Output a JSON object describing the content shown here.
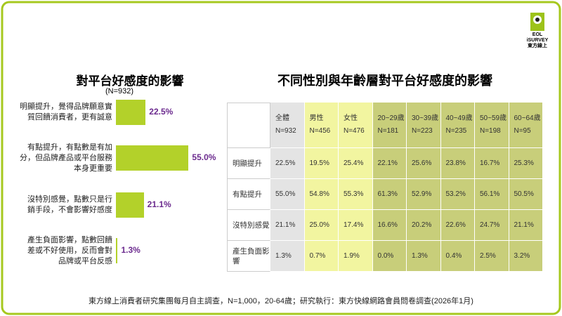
{
  "chart_data": {
    "type": "bar",
    "orientation": "horizontal",
    "title": "對平台好感度的影響",
    "subtitle": "(N=932)",
    "categories": [
      "明顯提升，覺得品牌願意實\n質回饋消費者，更有誠意",
      "有點提升，有點數是有加\n分，但品牌產品或平台服務\n本身更重要",
      "沒特別感覺，點數只是行\n銷手段，不會影響好感度",
      "產生負面影響，點數回饋\n差或不好使用，反而會對\n品牌或平台反感"
    ],
    "values": [
      22.5,
      55.0,
      21.1,
      1.3
    ],
    "value_labels": [
      "22.5%",
      "55.0%",
      "21.1%",
      "1.3%"
    ],
    "color": "#b3d12a",
    "label_color": "#6b2a8e"
  },
  "table": {
    "title": "不同性別與年齡層對平台好感度的影響",
    "columns": [
      {
        "name": "全體",
        "n": "N=932"
      },
      {
        "name": "男性",
        "n": "N=456"
      },
      {
        "name": "女性",
        "n": "N=476"
      },
      {
        "name": "20~29歲",
        "n": "N=181"
      },
      {
        "name": "30~39歲",
        "n": "N=223"
      },
      {
        "name": "40~49歲",
        "n": "N=235"
      },
      {
        "name": "50~59歲",
        "n": "N=198"
      },
      {
        "name": "60~64歲",
        "n": "N=95"
      }
    ],
    "rows": [
      {
        "label": "明顯提升",
        "cells": [
          "22.5%",
          "19.5%",
          "25.4%",
          "22.1%",
          "25.6%",
          "23.8%",
          "16.7%",
          "25.3%"
        ]
      },
      {
        "label": "有點提升",
        "cells": [
          "55.0%",
          "54.8%",
          "55.3%",
          "61.3%",
          "52.9%",
          "53.2%",
          "56.1%",
          "50.5%"
        ]
      },
      {
        "label": "沒特別感覺",
        "cells": [
          "21.1%",
          "25.0%",
          "17.4%",
          "16.6%",
          "20.2%",
          "22.6%",
          "24.7%",
          "21.1%"
        ]
      },
      {
        "label": "產生負面影響",
        "cells": [
          "1.3%",
          "0.7%",
          "1.9%",
          "0.0%",
          "1.3%",
          "0.4%",
          "2.5%",
          "3.2%"
        ]
      }
    ]
  },
  "logo": {
    "line1": "EOL",
    "line2": "iSURVEY",
    "line3": "東方線上"
  },
  "footer": "東方線上消費者研究集團每月自主調查，N=1,000，20-64歲；研究執行：東方快線網路會員問卷調查(2026年1月)"
}
